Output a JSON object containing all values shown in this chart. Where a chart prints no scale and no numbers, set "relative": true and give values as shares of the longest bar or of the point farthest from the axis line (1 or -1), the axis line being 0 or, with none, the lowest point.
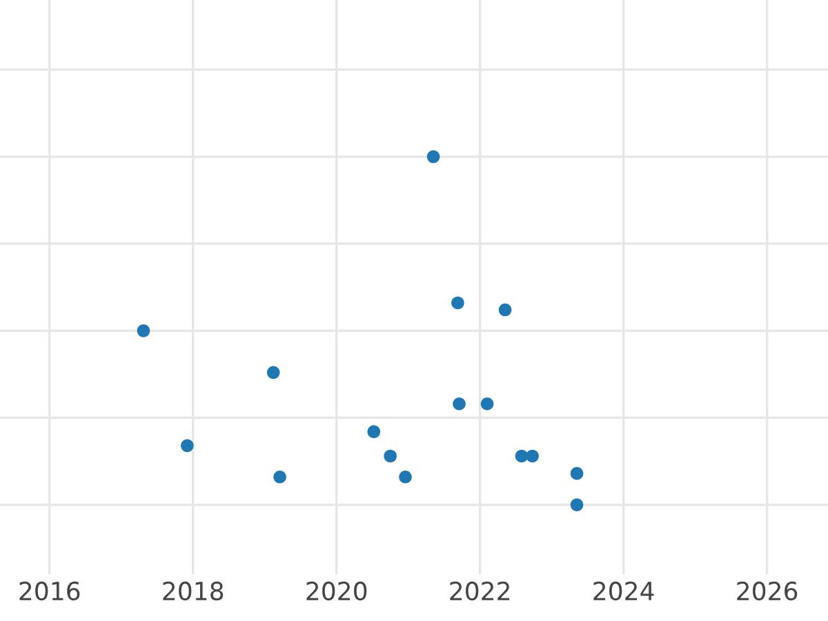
{
  "chart_data": {
    "type": "scatter",
    "relative": true,
    "marker": "circle",
    "grid": true,
    "x": [
      2017.31,
      2017.92,
      2019.12,
      2019.21,
      2020.52,
      2020.75,
      2020.96,
      2021.35,
      2021.69,
      2021.71,
      2022.1,
      2022.35,
      2022.58,
      2022.73,
      2023.35,
      2023.35
    ],
    "series": [
      {
        "color": "#1f77b4",
        "values": [
          0.5,
          0.17,
          0.38,
          0.08,
          0.21,
          0.14,
          0.08,
          1,
          0.58,
          0.29,
          0.29,
          0.56,
          0.14,
          0.14,
          0.09,
          0
        ]
      }
    ],
    "xlim": [
      2015.31,
      2026.85
    ],
    "xticks": [
      2016,
      2018,
      2020,
      2022,
      2024,
      2026
    ],
    "tick_labels": "x"
  }
}
